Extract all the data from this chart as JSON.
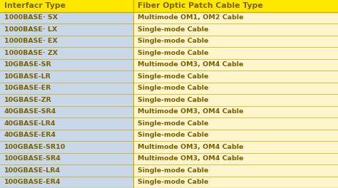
{
  "col1_header": "Interfacr Type",
  "col2_header": "Fiber Optic Patch Cable Type",
  "rows": [
    [
      "1000BASE· SX",
      "Multimode OM1, OM2 Cable"
    ],
    [
      "1000BASE· LX",
      "Single-mode Cable"
    ],
    [
      "1000BASE· EX",
      "Single-mode Cable"
    ],
    [
      "1000BASE· ZX",
      "Single-mode Cable"
    ],
    [
      "10GBASE-SR",
      "Multimode OM3, OM4 Cable"
    ],
    [
      "10GBASE-LR",
      "Single-mode Cable"
    ],
    [
      "10GBASE-ER",
      "Single-mode Cable"
    ],
    [
      "10GBASE-ZR",
      "Single-mode Cable"
    ],
    [
      "40GBASE-SR4",
      "Multimode OM3, OM4 Cable"
    ],
    [
      "40GBASE-LR4",
      "Single-mode Cable"
    ],
    [
      "40GBASE-ER4",
      "Single-mode Cable"
    ],
    [
      "100GBASE-SR10",
      "Multimode OM3, OM4 Cable"
    ],
    [
      "100GBASE-SR4",
      "Multimode OM3, OM4 Cable"
    ],
    [
      "100GBASE-LR4",
      "Single-mode Cable"
    ],
    [
      "100GBASE-ER4",
      "Single-mode Cable"
    ]
  ],
  "bg_color": "#FFE800",
  "header_bg": "#FFE800",
  "col1_bg": "#C8D8E8",
  "col2_bg": "#FFF5CC",
  "header_text_color": "#7B6000",
  "row_text_color": "#7B6000",
  "row_divider_color": "#C8A800",
  "col_split": 0.395,
  "figsize": [
    4.74,
    2.64
  ],
  "dpi": 100,
  "header_fontsize": 7.8,
  "row_fontsize": 6.8
}
